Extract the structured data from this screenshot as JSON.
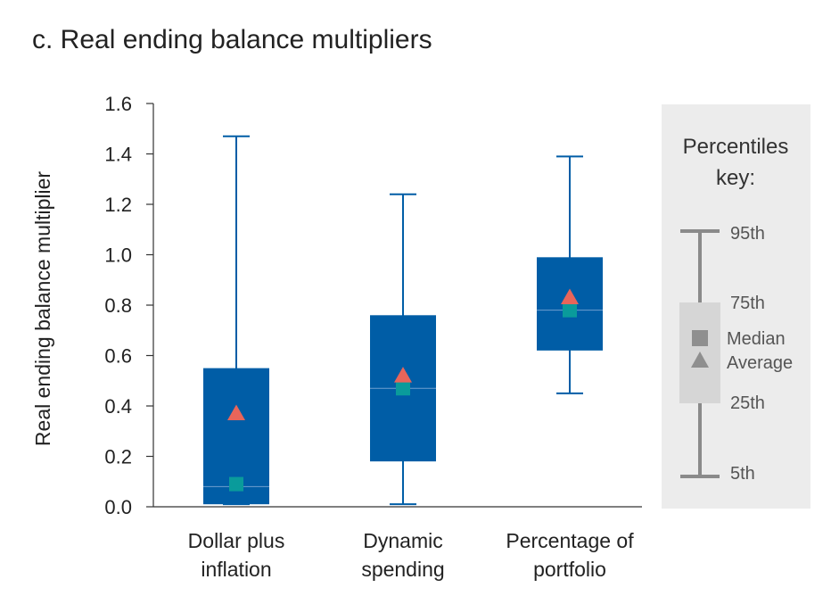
{
  "chart_data": {
    "type": "box",
    "title": "c. Real ending balance multipliers",
    "ylabel": "Real ending balance multiplier",
    "xlabel": "",
    "ylim": [
      0,
      1.6
    ],
    "yticks": [
      "0.0",
      "0.2",
      "0.4",
      "0.6",
      "0.8",
      "1.0",
      "1.2",
      "1.4",
      "1.6"
    ],
    "categories": [
      [
        "Dollar plus",
        "inflation"
      ],
      [
        "Dynamic",
        "spending"
      ],
      [
        "Percentage of",
        "portfolio"
      ]
    ],
    "boxes": [
      {
        "p5": 0.01,
        "p25": 0.01,
        "median": 0.08,
        "p75": 0.55,
        "p95": 1.47,
        "median_marker": 0.09,
        "average": 0.37
      },
      {
        "p5": 0.01,
        "p25": 0.18,
        "median": 0.47,
        "p75": 0.76,
        "p95": 1.24,
        "median_marker": 0.47,
        "average": 0.52
      },
      {
        "p5": 0.45,
        "p25": 0.62,
        "median": 0.78,
        "p75": 0.99,
        "p95": 1.39,
        "median_marker": 0.78,
        "average": 0.83
      }
    ],
    "colors": {
      "box": "#005da6",
      "whisker": "#005da6",
      "median_marker": "#0a9b9b",
      "average_marker": "#e8655a"
    },
    "grid": false,
    "legend": {
      "placement": "right",
      "title_lines": [
        "Percentiles",
        "key:"
      ],
      "labels": {
        "p95": "95th",
        "p75": "75th",
        "median": "Median",
        "average": "Average",
        "p25": "25th",
        "p5": "5th"
      }
    }
  }
}
